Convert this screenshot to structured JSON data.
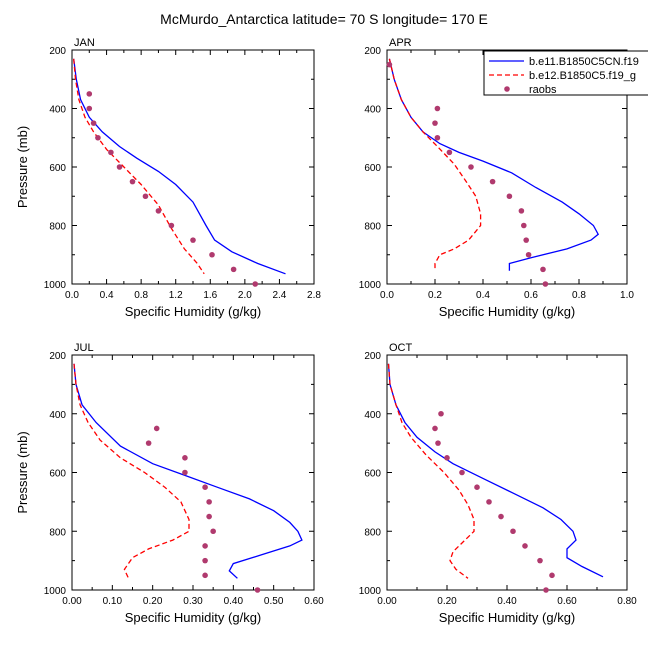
{
  "title": "McMurdo_Antarctica  latitude= 70 S longitude= 170 E",
  "colors": {
    "model1": "#0000ff",
    "model2": "#ff0000",
    "raobs": "#b03a6e"
  },
  "legend": [
    {
      "name": "b.e11.B1850C5CN.f19",
      "style": "solid",
      "color": "#0000ff"
    },
    {
      "name": "b.e12.B1850C5.f19_g",
      "style": "dashed",
      "color": "#ff0000"
    },
    {
      "name": "raobs",
      "style": "marker",
      "color": "#b03a6e"
    }
  ],
  "chart_data": [
    {
      "type": "line",
      "panel": "JAN",
      "xlabel": "Specific Humidity (g/kg)",
      "ylabel": "Pressure (mb)",
      "xlim": [
        0,
        2.8
      ],
      "ylim": [
        200,
        1000
      ],
      "y_inverted": true,
      "xticks": [
        "0.0",
        "0.4",
        "0.8",
        "1.2",
        "1.6",
        "2.0",
        "2.4",
        "2.8"
      ],
      "yticks": [
        "200",
        "400",
        "600",
        "800",
        "1000"
      ],
      "series": [
        {
          "name": "b.e11.B1850C5CN.f19",
          "style": "solid",
          "points": [
            [
              0.02,
              230
            ],
            [
              0.05,
              300
            ],
            [
              0.1,
              370
            ],
            [
              0.2,
              430
            ],
            [
              0.35,
              480
            ],
            [
              0.55,
              530
            ],
            [
              0.75,
              570
            ],
            [
              1.0,
              615
            ],
            [
              1.2,
              660
            ],
            [
              1.4,
              720
            ],
            [
              1.55,
              800
            ],
            [
              1.65,
              850
            ],
            [
              1.85,
              890
            ],
            [
              2.15,
              930
            ],
            [
              2.47,
              965
            ]
          ]
        },
        {
          "name": "b.e12.B1850C5.f19_g",
          "style": "dashed",
          "points": [
            [
              0.02,
              230
            ],
            [
              0.04,
              300
            ],
            [
              0.08,
              370
            ],
            [
              0.15,
              430
            ],
            [
              0.25,
              480
            ],
            [
              0.4,
              540
            ],
            [
              0.6,
              600
            ],
            [
              0.8,
              660
            ],
            [
              1.0,
              730
            ],
            [
              1.15,
              810
            ],
            [
              1.3,
              880
            ],
            [
              1.45,
              930
            ],
            [
              1.53,
              965
            ]
          ]
        },
        {
          "name": "raobs",
          "style": "marker",
          "points": [
            [
              0.2,
              350
            ],
            [
              0.2,
              400
            ],
            [
              0.25,
              450
            ],
            [
              0.3,
              500
            ],
            [
              0.45,
              550
            ],
            [
              0.55,
              600
            ],
            [
              0.7,
              650
            ],
            [
              0.85,
              700
            ],
            [
              1.0,
              750
            ],
            [
              1.15,
              800
            ],
            [
              1.4,
              850
            ],
            [
              1.62,
              900
            ],
            [
              1.87,
              950
            ],
            [
              2.12,
              1000
            ]
          ]
        }
      ]
    },
    {
      "type": "line",
      "panel": "APR",
      "xlabel": "Specific Humidity (g/kg)",
      "ylabel": "",
      "xlim": [
        0,
        1.0
      ],
      "ylim": [
        200,
        1000
      ],
      "y_inverted": true,
      "xticks": [
        "0.0",
        "0.2",
        "0.4",
        "0.6",
        "0.8",
        "1.0"
      ],
      "yticks": [
        "200",
        "400",
        "600",
        "800",
        "1000"
      ],
      "series": [
        {
          "name": "b.e11.B1850C5CN.f19",
          "style": "solid",
          "points": [
            [
              0.01,
              230
            ],
            [
              0.03,
              300
            ],
            [
              0.06,
              370
            ],
            [
              0.1,
              430
            ],
            [
              0.15,
              480
            ],
            [
              0.22,
              520
            ],
            [
              0.3,
              550
            ],
            [
              0.4,
              580
            ],
            [
              0.52,
              620
            ],
            [
              0.62,
              670
            ],
            [
              0.73,
              720
            ],
            [
              0.8,
              760
            ],
            [
              0.86,
              800
            ],
            [
              0.88,
              830
            ],
            [
              0.85,
              850
            ],
            [
              0.75,
              880
            ],
            [
              0.6,
              910
            ],
            [
              0.51,
              930
            ],
            [
              0.51,
              955
            ]
          ]
        },
        {
          "name": "b.e12.B1850C5.f19_g",
          "style": "dashed",
          "points": [
            [
              0.01,
              230
            ],
            [
              0.03,
              300
            ],
            [
              0.06,
              370
            ],
            [
              0.1,
              430
            ],
            [
              0.15,
              480
            ],
            [
              0.21,
              530
            ],
            [
              0.28,
              590
            ],
            [
              0.33,
              650
            ],
            [
              0.37,
              700
            ],
            [
              0.39,
              760
            ],
            [
              0.39,
              800
            ],
            [
              0.34,
              850
            ],
            [
              0.28,
              880
            ],
            [
              0.22,
              900
            ],
            [
              0.2,
              930
            ],
            [
              0.2,
              955
            ]
          ]
        },
        {
          "name": "raobs",
          "style": "marker",
          "points": [
            [
              0.01,
              250
            ],
            [
              0.21,
              400
            ],
            [
              0.2,
              450
            ],
            [
              0.21,
              500
            ],
            [
              0.26,
              550
            ],
            [
              0.35,
              600
            ],
            [
              0.44,
              650
            ],
            [
              0.51,
              700
            ],
            [
              0.56,
              750
            ],
            [
              0.57,
              800
            ],
            [
              0.58,
              850
            ],
            [
              0.59,
              900
            ],
            [
              0.65,
              950
            ],
            [
              0.66,
              1000
            ]
          ]
        }
      ]
    },
    {
      "type": "line",
      "panel": "JUL",
      "xlabel": "Specific Humidity (g/kg)",
      "ylabel": "Pressure (mb)",
      "xlim": [
        0,
        0.6
      ],
      "ylim": [
        200,
        1000
      ],
      "y_inverted": true,
      "xticks": [
        "0.00",
        "0.10",
        "0.20",
        "0.30",
        "0.40",
        "0.50",
        "0.60"
      ],
      "yticks": [
        "200",
        "400",
        "600",
        "800",
        "1000"
      ],
      "series": [
        {
          "name": "b.e11.B1850C5CN.f19",
          "style": "solid",
          "points": [
            [
              0.005,
              230
            ],
            [
              0.01,
              300
            ],
            [
              0.025,
              370
            ],
            [
              0.06,
              430
            ],
            [
              0.12,
              510
            ],
            [
              0.2,
              570
            ],
            [
              0.28,
              610
            ],
            [
              0.36,
              650
            ],
            [
              0.44,
              690
            ],
            [
              0.5,
              730
            ],
            [
              0.54,
              770
            ],
            [
              0.56,
              800
            ],
            [
              0.57,
              830
            ],
            [
              0.54,
              850
            ],
            [
              0.47,
              880
            ],
            [
              0.4,
              910
            ],
            [
              0.39,
              935
            ],
            [
              0.41,
              960
            ]
          ]
        },
        {
          "name": "b.e12.B1850C5.f19_g",
          "style": "dashed",
          "points": [
            [
              0.005,
              230
            ],
            [
              0.01,
              300
            ],
            [
              0.02,
              370
            ],
            [
              0.04,
              430
            ],
            [
              0.07,
              490
            ],
            [
              0.12,
              550
            ],
            [
              0.18,
              600
            ],
            [
              0.23,
              650
            ],
            [
              0.27,
              700
            ],
            [
              0.29,
              760
            ],
            [
              0.29,
              800
            ],
            [
              0.25,
              830
            ],
            [
              0.19,
              860
            ],
            [
              0.15,
              890
            ],
            [
              0.13,
              930
            ],
            [
              0.14,
              960
            ]
          ]
        },
        {
          "name": "raobs",
          "style": "marker",
          "points": [
            [
              0.21,
              450
            ],
            [
              0.19,
              500
            ],
            [
              0.28,
              550
            ],
            [
              0.28,
              600
            ],
            [
              0.33,
              650
            ],
            [
              0.34,
              700
            ],
            [
              0.34,
              750
            ],
            [
              0.35,
              800
            ],
            [
              0.33,
              850
            ],
            [
              0.33,
              900
            ],
            [
              0.33,
              950
            ],
            [
              0.46,
              1000
            ]
          ]
        }
      ]
    },
    {
      "type": "line",
      "panel": "OCT",
      "xlabel": "Specific Humidity (g/kg)",
      "ylabel": "",
      "xlim": [
        0,
        0.8
      ],
      "ylim": [
        200,
        1000
      ],
      "y_inverted": true,
      "xticks": [
        "0.00",
        "0.20",
        "0.40",
        "0.60",
        "0.80"
      ],
      "yticks": [
        "200",
        "400",
        "600",
        "800",
        "1000"
      ],
      "series": [
        {
          "name": "b.e11.B1850C5CN.f19",
          "style": "solid",
          "points": [
            [
              0.005,
              230
            ],
            [
              0.01,
              300
            ],
            [
              0.03,
              370
            ],
            [
              0.06,
              430
            ],
            [
              0.1,
              480
            ],
            [
              0.16,
              530
            ],
            [
              0.22,
              570
            ],
            [
              0.32,
              620
            ],
            [
              0.42,
              670
            ],
            [
              0.52,
              720
            ],
            [
              0.58,
              760
            ],
            [
              0.62,
              800
            ],
            [
              0.63,
              830
            ],
            [
              0.6,
              860
            ],
            [
              0.6,
              890
            ],
            [
              0.65,
              920
            ],
            [
              0.72,
              955
            ]
          ]
        },
        {
          "name": "b.e12.B1850C5.f19_g",
          "style": "dashed",
          "points": [
            [
              0.005,
              230
            ],
            [
              0.01,
              300
            ],
            [
              0.03,
              370
            ],
            [
              0.05,
              430
            ],
            [
              0.08,
              480
            ],
            [
              0.13,
              540
            ],
            [
              0.19,
              600
            ],
            [
              0.24,
              660
            ],
            [
              0.27,
              710
            ],
            [
              0.29,
              760
            ],
            [
              0.29,
              800
            ],
            [
              0.25,
              840
            ],
            [
              0.22,
              870
            ],
            [
              0.21,
              900
            ],
            [
              0.23,
              930
            ],
            [
              0.27,
              960
            ]
          ]
        },
        {
          "name": "raobs",
          "style": "marker",
          "points": [
            [
              0.18,
              400
            ],
            [
              0.16,
              450
            ],
            [
              0.17,
              500
            ],
            [
              0.2,
              550
            ],
            [
              0.25,
              600
            ],
            [
              0.3,
              650
            ],
            [
              0.34,
              700
            ],
            [
              0.38,
              750
            ],
            [
              0.42,
              800
            ],
            [
              0.46,
              850
            ],
            [
              0.51,
              900
            ],
            [
              0.55,
              950
            ],
            [
              0.53,
              1000
            ]
          ]
        }
      ]
    }
  ]
}
